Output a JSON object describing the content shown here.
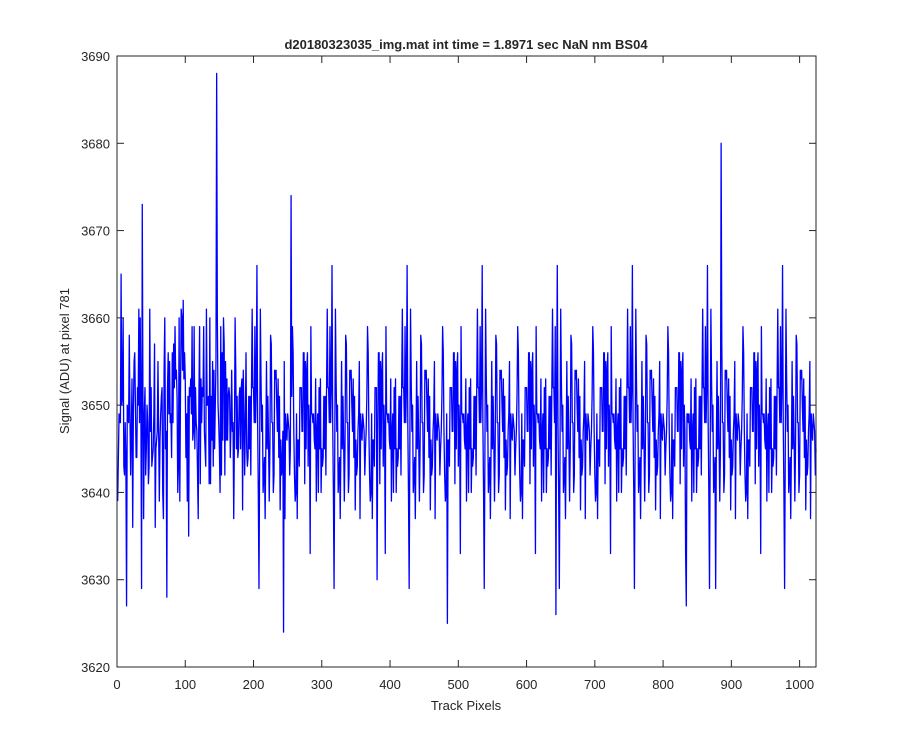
{
  "chart_data": {
    "type": "line",
    "title": "d20180323035_img.mat int time = 1.8971 sec  NaN nm BS04",
    "xlabel": "Track Pixels",
    "ylabel": "Signal (ADU) at pixel 781",
    "xlim": [
      0,
      1024
    ],
    "ylim": [
      3620,
      3690
    ],
    "xticks": [
      0,
      100,
      200,
      300,
      400,
      500,
      600,
      700,
      800,
      900,
      1000
    ],
    "yticks": [
      3620,
      3630,
      3640,
      3650,
      3660,
      3670,
      3680,
      3690
    ],
    "grid": false,
    "legend": "none",
    "n_points": 1024,
    "mean": 3648.5,
    "noise_sd": 6.5,
    "peaks": [
      {
        "x": 14,
        "y": 3627
      },
      {
        "x": 37,
        "y": 3673
      },
      {
        "x": 73,
        "y": 3628
      },
      {
        "x": 146,
        "y": 3688
      },
      {
        "x": 244,
        "y": 3624
      },
      {
        "x": 255,
        "y": 3674
      },
      {
        "x": 381,
        "y": 3630
      },
      {
        "x": 484,
        "y": 3625
      },
      {
        "x": 643,
        "y": 3626
      },
      {
        "x": 834,
        "y": 3627
      },
      {
        "x": 885,
        "y": 3680
      },
      {
        "x": 877,
        "y": 3629
      }
    ],
    "series": [
      {
        "color": "#0000ff"
      }
    ]
  }
}
